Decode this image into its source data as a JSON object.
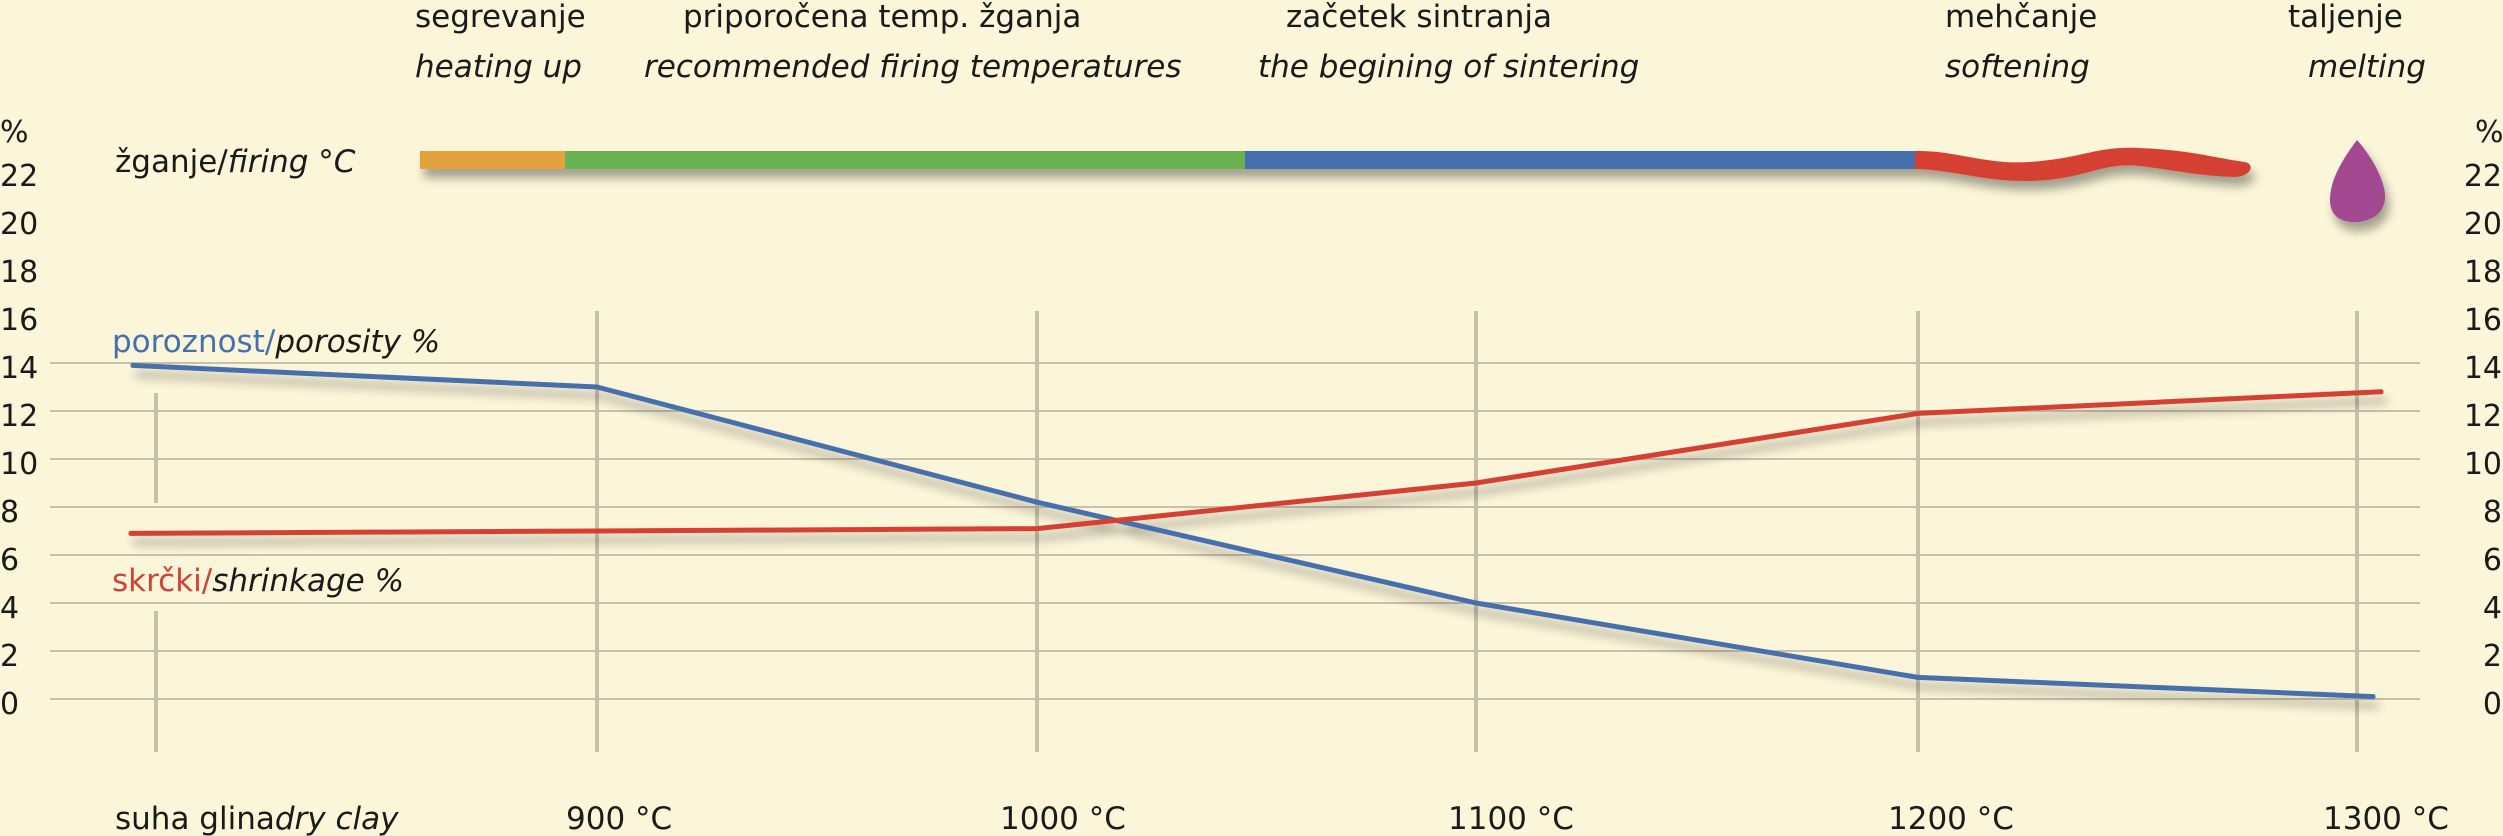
{
  "chart_data": {
    "type": "line",
    "x_axis_labels": [
      "dry clay",
      "900 °C",
      "1000 °C",
      "1100 °C",
      "1200 °C",
      "1300 °C"
    ],
    "x_axis_labels_si": [
      "suha glina",
      "",
      "",
      "",
      "",
      ""
    ],
    "y_label": "%",
    "y_ticks": [
      0,
      2,
      4,
      6,
      8,
      10,
      12,
      14,
      16,
      18,
      20,
      22
    ],
    "ylim": [
      0,
      22
    ],
    "series": [
      {
        "name": "porosity %",
        "name_si": "poroznost/",
        "color": "#4570ad",
        "x": [
          0,
          1,
          2,
          3,
          4,
          5
        ],
        "y": [
          13.9,
          13.0,
          8.2,
          4.0,
          0.9,
          0.1
        ]
      },
      {
        "name": "shrinkage %",
        "name_si": "skrčki/",
        "color": "#d63f33",
        "x": [
          0,
          1,
          2,
          3,
          4,
          5
        ],
        "y": [
          6.9,
          7.0,
          7.1,
          9.0,
          11.9,
          12.8
        ]
      }
    ],
    "firing": {
      "label_si": "žganje/",
      "label_en": "firing °C",
      "phases": [
        {
          "si": "segrevanje",
          "en": "heating up",
          "color": "#e3a23e"
        },
        {
          "si": "priporočena temp. žganja",
          "en": "recommended firing temperatures",
          "color": "#68b34f"
        },
        {
          "si": "začetek sintranja",
          "en": "the begining of sintering",
          "color": "#4570ad"
        },
        {
          "si": "mehčanje",
          "en": "softening",
          "color": "#d63f33"
        },
        {
          "si": "taljenje",
          "en": "melting",
          "color": "#a34a92"
        }
      ]
    },
    "grid": true
  }
}
